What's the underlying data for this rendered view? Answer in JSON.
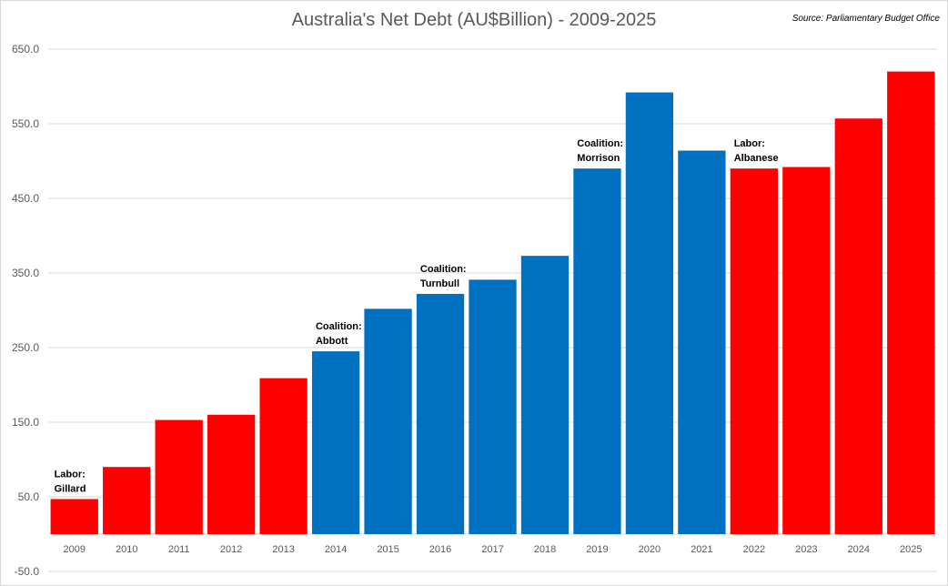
{
  "chart_data": {
    "type": "bar",
    "title": "Australia's  Net Debt (AU$Billion) - 2009-2025",
    "source": "Source: Parliamentary Budget Office",
    "categories": [
      "2009",
      "2010",
      "2011",
      "2012",
      "2013",
      "2014",
      "2015",
      "2016",
      "2017",
      "2018",
      "2019",
      "2020",
      "2021",
      "2022",
      "2023",
      "2024",
      "2025"
    ],
    "values": [
      47,
      90,
      153,
      160,
      209,
      245,
      302,
      322,
      341,
      373,
      490,
      592,
      514,
      490,
      492,
      557,
      620
    ],
    "bar_party": [
      "Labor",
      "Labor",
      "Labor",
      "Labor",
      "Labor",
      "Coalition",
      "Coalition",
      "Coalition",
      "Coalition",
      "Coalition",
      "Coalition",
      "Coalition",
      "Coalition",
      "Labor",
      "Labor",
      "Labor",
      "Labor"
    ],
    "party_colors": {
      "Labor": "#ff0000",
      "Coalition": "#0070c0"
    },
    "ylim": [
      -50,
      650
    ],
    "y_ticks": [
      "-50.0",
      "50.0",
      "150.0",
      "250.0",
      "350.0",
      "450.0",
      "550.0",
      "650.0"
    ],
    "grid": true,
    "annotations": [
      {
        "category": "2009",
        "lines": [
          "Labor:",
          "Gillard"
        ]
      },
      {
        "category": "2014",
        "lines": [
          "Coalition:",
          "Abbott"
        ]
      },
      {
        "category": "2016",
        "lines": [
          "Coalition:",
          "Turnbull"
        ]
      },
      {
        "category": "2019",
        "lines": [
          "Coalition:",
          "Morrison"
        ]
      },
      {
        "category": "2022",
        "lines": [
          "Labor:",
          "Albanese"
        ]
      }
    ]
  }
}
